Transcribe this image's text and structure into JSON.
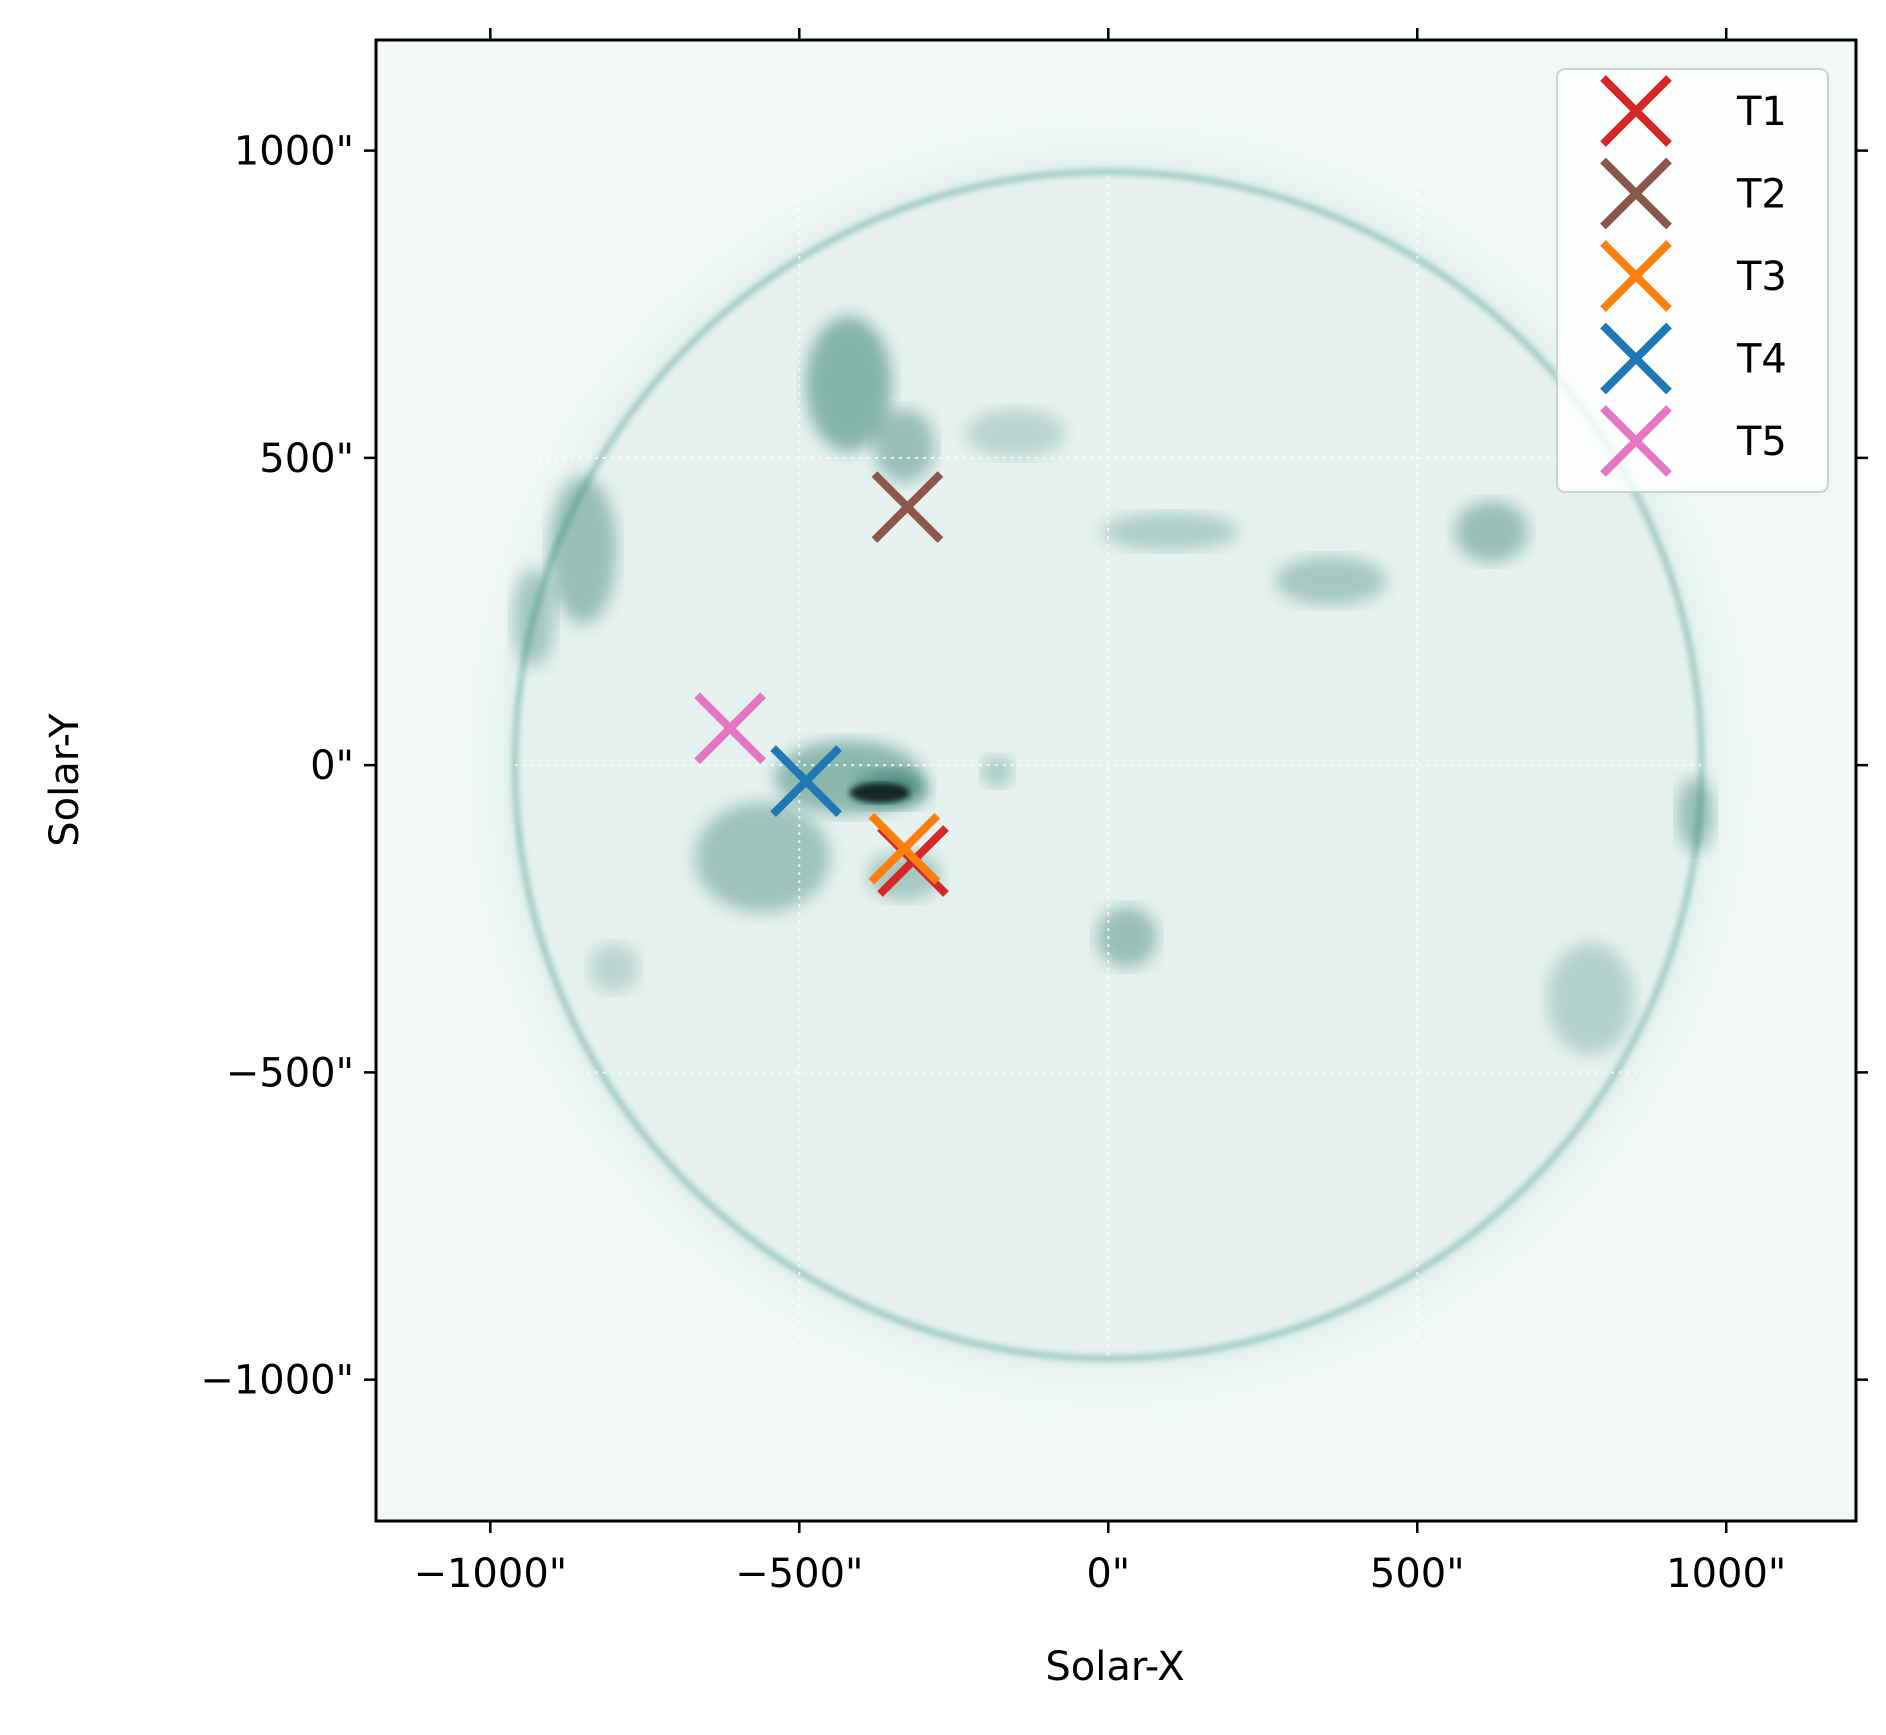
{
  "chart_data": {
    "type": "scatter",
    "xlabel": "Solar-X",
    "ylabel": "Solar-Y",
    "xlim": [
      -1185,
      1210
    ],
    "ylim": [
      -1230,
      1180
    ],
    "x_ticks": [
      -1000,
      -500,
      0,
      500,
      1000
    ],
    "y_ticks": [
      -1000,
      -500,
      0,
      500,
      1000
    ],
    "x_tick_labels": [
      "−1000\"",
      "−500\"",
      "0\"",
      "500\"",
      "1000\""
    ],
    "y_tick_labels": [
      "−1000\"",
      "−500\"",
      "0\"",
      "500\"",
      "1000\""
    ],
    "grid": "dotted white at 500\" spacing",
    "background": "solar EUV image (teal colormap), disk radius about 960\"",
    "marker": "x",
    "legend_position": "top-right",
    "series": [
      {
        "name": "T1",
        "color": "#d62728",
        "x": -316,
        "y": -156
      },
      {
        "name": "T2",
        "color": "#8c564b",
        "x": -325,
        "y": 420
      },
      {
        "name": "T3",
        "color": "#ff7f0e",
        "x": -330,
        "y": -136
      },
      {
        "name": "T4",
        "color": "#1f77b4",
        "x": -489,
        "y": -26
      },
      {
        "name": "T5",
        "color": "#e377c2",
        "x": -612,
        "y": 60
      }
    ]
  }
}
